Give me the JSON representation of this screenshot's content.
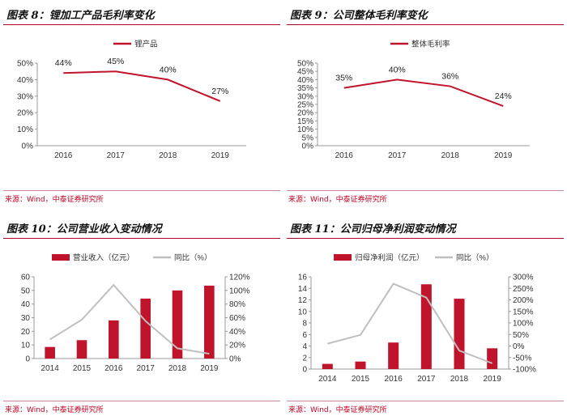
{
  "panels": [
    {
      "title": "图表 8：锂加工产品毛利率变化",
      "source": "来源：Wind，中泰证券研究所"
    },
    {
      "title": "图表 9：公司整体毛利率变化",
      "source": "来源：Wind，中泰证券研究所"
    },
    {
      "title": "图表 10：公司营业收入变动情况",
      "source": "来源：Wind，中泰证券研究所"
    },
    {
      "title": "图表 11：公司归母净利润变动情况",
      "source": "来源：Wind，中泰证券研究所"
    }
  ],
  "chart_data": [
    {
      "type": "line",
      "categories": [
        "2016",
        "2017",
        "2018",
        "2019"
      ],
      "series": [
        {
          "name": "锂产品",
          "values": [
            44,
            45,
            40,
            27
          ],
          "color": "#c0142d"
        }
      ],
      "data_labels": [
        "44%",
        "45%",
        "40%",
        "27%"
      ],
      "y_ticks": [
        "0%",
        "10%",
        "20%",
        "30%",
        "40%",
        "50%"
      ],
      "ylim": [
        0,
        50
      ],
      "grid": false,
      "legend": "top"
    },
    {
      "type": "line",
      "categories": [
        "2016",
        "2017",
        "2018",
        "2019"
      ],
      "series": [
        {
          "name": "整体毛利率",
          "values": [
            35,
            40,
            36,
            24
          ],
          "color": "#c0142d"
        }
      ],
      "data_labels": [
        "35%",
        "40%",
        "36%",
        "24%"
      ],
      "y_ticks": [
        "0%",
        "5%",
        "10%",
        "15%",
        "20%",
        "25%",
        "30%",
        "35%",
        "40%",
        "45%",
        "50%"
      ],
      "ylim": [
        0,
        50
      ],
      "grid": false,
      "legend": "top"
    },
    {
      "type": "bar",
      "categories": [
        "2014",
        "2015",
        "2016",
        "2017",
        "2018",
        "2019"
      ],
      "series": [
        {
          "name": "营业收入（亿元）",
          "values": [
            8.5,
            13.5,
            28,
            44,
            50,
            53.5
          ],
          "color": "#c0142d",
          "axis": "left"
        },
        {
          "name": "同比（%）",
          "values": [
            28,
            57,
            108,
            55,
            15,
            7
          ],
          "color": "#bfbfbf",
          "axis": "right",
          "type": "line"
        }
      ],
      "y_ticks": [
        "0",
        "10",
        "20",
        "30",
        "40",
        "50",
        "60"
      ],
      "y2_ticks": [
        "0%",
        "20%",
        "40%",
        "60%",
        "80%",
        "100%",
        "120%"
      ],
      "ylim": [
        0,
        60
      ],
      "y2lim": [
        0,
        120
      ],
      "grid": false,
      "legend": "top"
    },
    {
      "type": "bar",
      "categories": [
        "2014",
        "2015",
        "2016",
        "2017",
        "2018",
        "2019"
      ],
      "series": [
        {
          "name": "归母净利润（亿元）",
          "values": [
            0.9,
            1.3,
            4.6,
            14.7,
            12.2,
            3.6
          ],
          "color": "#c0142d",
          "axis": "left"
        },
        {
          "name": "同比（%）",
          "values": [
            10,
            48,
            270,
            210,
            -20,
            -75
          ],
          "color": "#bfbfbf",
          "axis": "right",
          "type": "line"
        }
      ],
      "y_ticks": [
        "0",
        "2",
        "4",
        "6",
        "8",
        "10",
        "12",
        "14",
        "16"
      ],
      "y2_ticks": [
        "-100%",
        "-50%",
        "0%",
        "50%",
        "100%",
        "150%",
        "200%",
        "250%",
        "300%"
      ],
      "ylim": [
        0,
        16
      ],
      "y2lim": [
        -100,
        300
      ],
      "grid": false,
      "legend": "top"
    }
  ]
}
